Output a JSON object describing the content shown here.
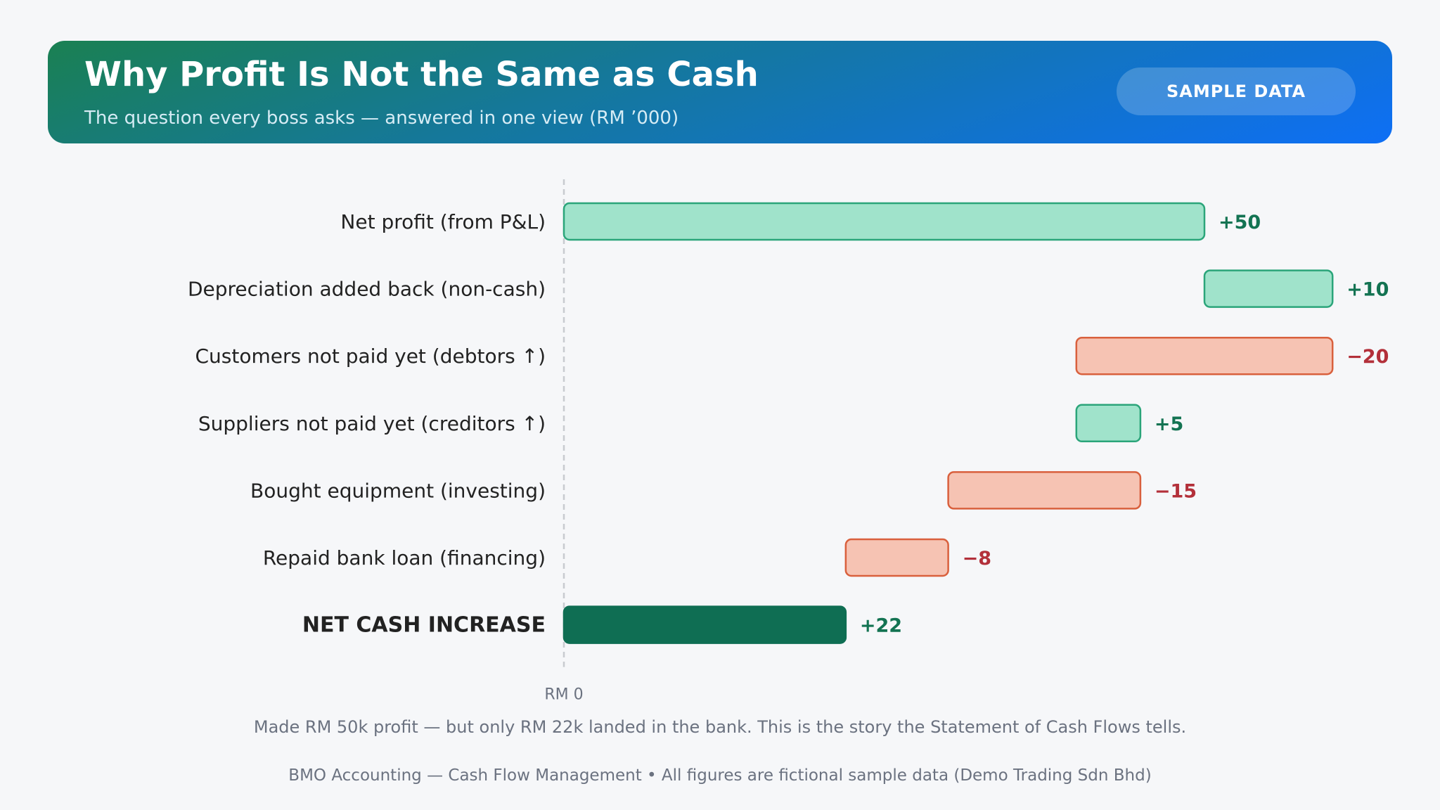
{
  "header": {
    "title": "Why Profit Is Not the Same as Cash",
    "subtitle": "The question every boss asks — answered in one view (RM ’000)",
    "badge": "SAMPLE DATA"
  },
  "chart_data": {
    "type": "bar",
    "subtype": "waterfall",
    "orientation": "horizontal",
    "categories": [
      "Net profit (from P&L)",
      "Depreciation added back (non-cash)",
      "Customers not paid yet (debtors ↑)",
      "Suppliers not paid yet (creditors ↑)",
      "Bought equipment (investing)",
      "Repaid bank loan (financing)",
      "NET CASH INCREASE"
    ],
    "values": [
      50,
      10,
      -20,
      5,
      -15,
      -8,
      22
    ],
    "value_labels": [
      "+50",
      "+10",
      "−20",
      "+5",
      "−15",
      "−8",
      "+22"
    ],
    "is_total": [
      false,
      false,
      false,
      false,
      false,
      false,
      true
    ],
    "xlim": [
      0,
      64
    ],
    "baseline_label": "RM 0",
    "grid": false,
    "legend": "none",
    "colors": {
      "positive_fill": "#a0e3cb",
      "positive_stroke": "#2ba57a",
      "negative_fill": "#f6c3b3",
      "negative_stroke": "#d9603d",
      "total_fill": "#0f6e53",
      "positive_label": "#137352",
      "negative_label": "#b3303a",
      "category_label": "#222222",
      "baseline": "#c8cbd0"
    }
  },
  "caption": "Made RM 50k profit — but only RM 22k landed in the bank. This is the story the Statement of Cash Flows tells.",
  "footer": "BMO Accounting — Cash Flow Management • All figures are fictional sample data (Demo Trading Sdn Bhd)"
}
